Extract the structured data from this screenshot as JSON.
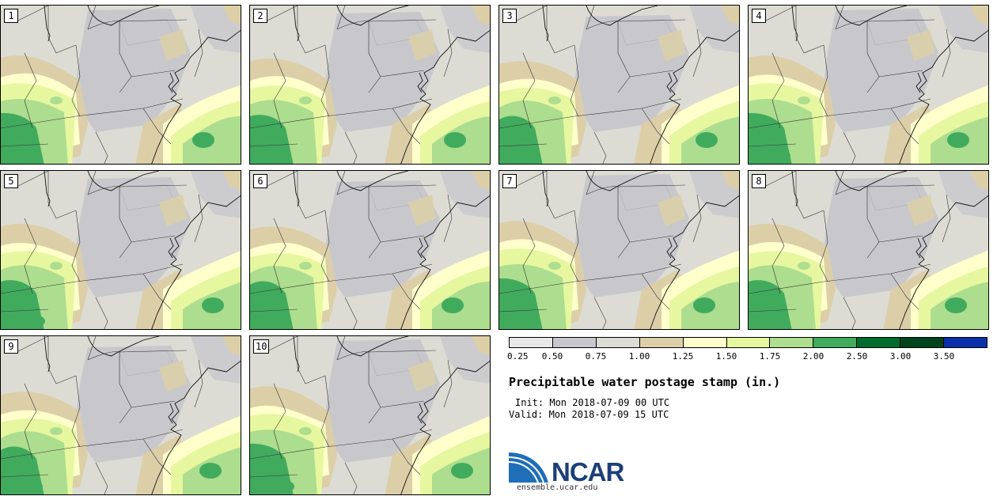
{
  "figure": {
    "title": "Precipitable water postage stamp (in.)",
    "init": "Init: Mon 2018-07-09 00 UTC",
    "valid": "Valid: Mon 2018-07-09 15 UTC",
    "logo_text": "NCAR",
    "url": "ensemble.ucar.edu"
  },
  "panels": [
    {
      "label": "1"
    },
    {
      "label": "2"
    },
    {
      "label": "3"
    },
    {
      "label": "4"
    },
    {
      "label": "5"
    },
    {
      "label": "6"
    },
    {
      "label": "7"
    },
    {
      "label": "8"
    },
    {
      "label": "9"
    },
    {
      "label": "10"
    }
  ],
  "colorbar": {
    "ticks": [
      "0.25",
      "0.50",
      "0.75",
      "1.00",
      "1.25",
      "1.50",
      "1.75",
      "2.00",
      "2.50",
      "3.00",
      "3.50"
    ],
    "colors": [
      "#e8e8e8",
      "#c8c8cc",
      "#dcdcd4",
      "#dccfa8",
      "#ffffcc",
      "#e6f7a0",
      "#addd8e",
      "#41ab5d",
      "#006d2c",
      "#00441b",
      "#0a2fa8"
    ]
  },
  "colors": {
    "panel_background": "#d4d0c8",
    "boundary": "#333333",
    "logo_blue": "#1b3f7a"
  }
}
